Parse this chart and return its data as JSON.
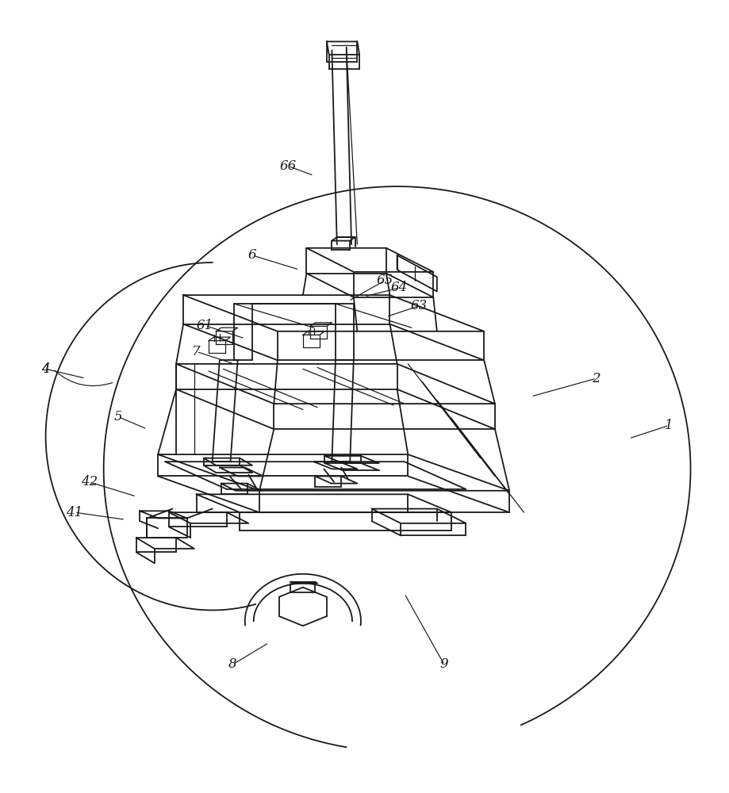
{
  "bg_color": "#ffffff",
  "line_color": "#1a1a1a",
  "lw": 1.3,
  "lw_thin": 0.9,
  "fig_w": 9.19,
  "fig_h": 10.0,
  "annotations": [
    [
      "1",
      [
        0.865,
        0.558
      ],
      [
        0.92,
        0.54
      ]
    ],
    [
      "2",
      [
        0.73,
        0.5
      ],
      [
        0.82,
        0.475
      ]
    ],
    [
      "4",
      [
        0.115,
        0.475
      ],
      [
        0.06,
        0.462
      ]
    ],
    [
      "42",
      [
        0.185,
        0.638
      ],
      [
        0.12,
        0.618
      ]
    ],
    [
      "41",
      [
        0.17,
        0.67
      ],
      [
        0.1,
        0.66
      ]
    ],
    [
      "5",
      [
        0.2,
        0.545
      ],
      [
        0.16,
        0.528
      ]
    ],
    [
      "6",
      [
        0.41,
        0.325
      ],
      [
        0.345,
        0.305
      ]
    ],
    [
      "61",
      [
        0.335,
        0.42
      ],
      [
        0.28,
        0.402
      ]
    ],
    [
      "65",
      [
        0.478,
        0.368
      ],
      [
        0.528,
        0.34
      ]
    ],
    [
      "64",
      [
        0.5,
        0.362
      ],
      [
        0.548,
        0.35
      ]
    ],
    [
      "63",
      [
        0.53,
        0.39
      ],
      [
        0.575,
        0.375
      ]
    ],
    [
      "7",
      [
        0.32,
        0.455
      ],
      [
        0.268,
        0.438
      ]
    ],
    [
      "8",
      [
        0.368,
        0.84
      ],
      [
        0.318,
        0.87
      ]
    ],
    [
      "9",
      [
        0.555,
        0.772
      ],
      [
        0.61,
        0.87
      ]
    ],
    [
      "66",
      [
        0.43,
        0.195
      ],
      [
        0.395,
        0.182
      ]
    ]
  ]
}
